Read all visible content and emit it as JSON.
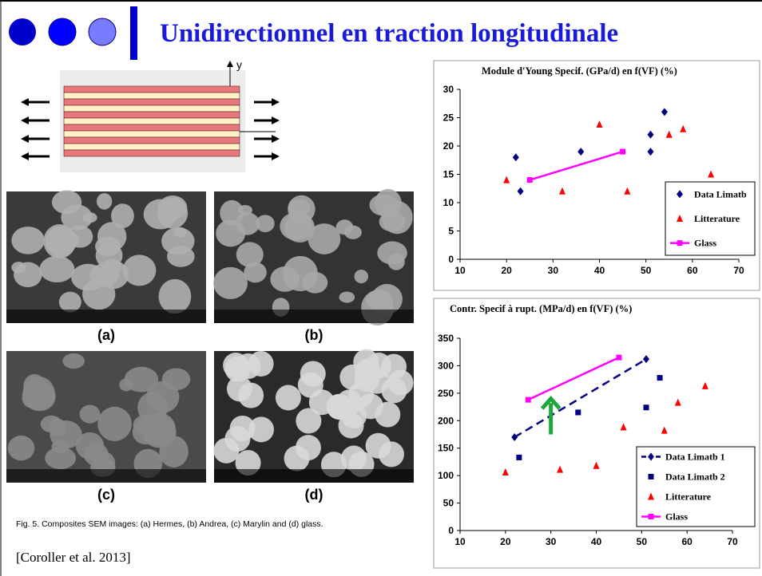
{
  "title": "Unidirectionnel en traction longitudinale",
  "diagram": {
    "axis_label": "y"
  },
  "figure": {
    "labels": [
      "(a)",
      "(b)",
      "(c)",
      "(d)"
    ],
    "caption": "Fig. 5. Composites SEM images: (a) Hermes, (b) Andrea, (c) Marylin and (d) glass."
  },
  "citation": "[Coroller et al. 2013]",
  "chart_data": [
    {
      "type": "scatter",
      "title": "Module d'Young Specif. (GPa/d) en f(VF) (%)",
      "xlim": [
        10,
        70
      ],
      "xticks": [
        10,
        20,
        30,
        40,
        50,
        60,
        70
      ],
      "ylim": [
        0,
        30
      ],
      "yticks": [
        0,
        5,
        10,
        15,
        20,
        25,
        30
      ],
      "legend": "right",
      "series": [
        {
          "name": "Data Limatb",
          "color": "#000080",
          "marker": "diamond",
          "line": false,
          "x": [
            22,
            23,
            36,
            51,
            51,
            54
          ],
          "values": [
            18,
            12,
            19,
            22,
            19,
            26
          ]
        },
        {
          "name": "Litterature",
          "color": "#ff0000",
          "marker": "triangle",
          "line": false,
          "x": [
            20,
            32,
            40,
            46,
            55,
            58,
            64
          ],
          "values": [
            14,
            12,
            23.8,
            12,
            22,
            23,
            15
          ]
        },
        {
          "name": "Glass",
          "color": "#ff00ff",
          "marker": "square",
          "line": true,
          "x": [
            25,
            45
          ],
          "values": [
            14,
            19
          ]
        }
      ]
    },
    {
      "type": "scatter",
      "title": "Contr. Specif à rupt.  (MPa/d) en f(VF) (%)",
      "xlim": [
        10,
        70
      ],
      "xticks": [
        10,
        20,
        30,
        40,
        50,
        60,
        70
      ],
      "ylim": [
        0,
        350
      ],
      "yticks": [
        0,
        50,
        100,
        150,
        200,
        250,
        300,
        350
      ],
      "legend": "right",
      "series": [
        {
          "name": "Data Limatb 1",
          "color": "#000080",
          "marker": "diamond",
          "line": true,
          "dash": true,
          "x": [
            22,
            51
          ],
          "values": [
            170,
            312
          ]
        },
        {
          "name": "Data Limatb 2",
          "color": "#000080",
          "marker": "square",
          "line": false,
          "x": [
            23,
            36,
            51,
            54
          ],
          "values": [
            133,
            215,
            224,
            278
          ]
        },
        {
          "name": "Litterature",
          "color": "#ff0000",
          "marker": "triangle",
          "line": false,
          "x": [
            20,
            32,
            40,
            46,
            55,
            58,
            64
          ],
          "values": [
            106,
            111,
            118,
            188,
            182,
            233,
            263
          ]
        },
        {
          "name": "Glass",
          "color": "#ff00ff",
          "marker": "square",
          "line": true,
          "x": [
            25,
            45
          ],
          "values": [
            238,
            315
          ]
        }
      ]
    }
  ]
}
